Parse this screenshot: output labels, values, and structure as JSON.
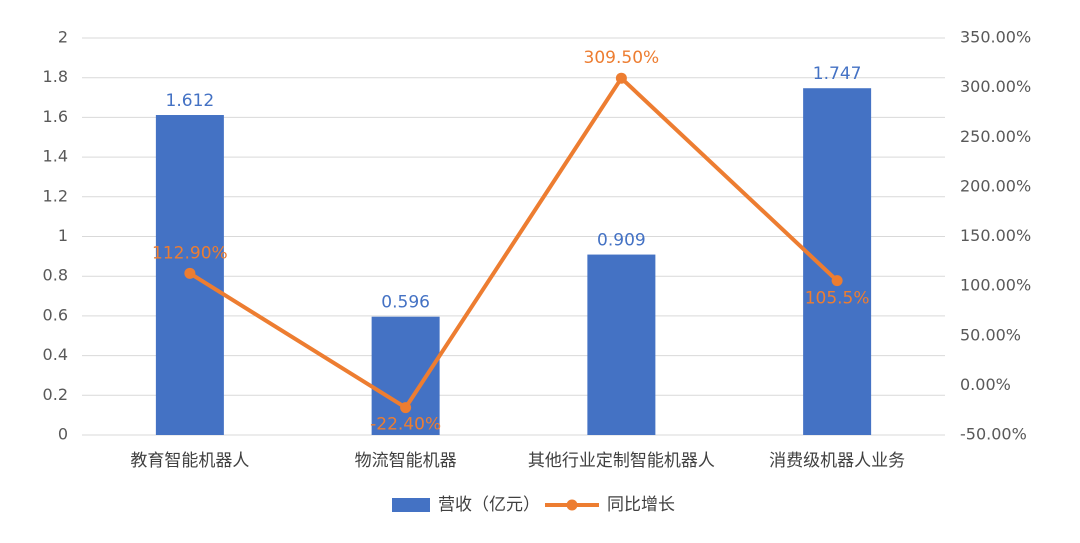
{
  "chart_data": {
    "type": "bar",
    "categories": [
      "教育智能机器人",
      "物流智能机器",
      "其他行业定制智能机器人",
      "消费级机器人业务"
    ],
    "series": [
      {
        "name": "营收（亿元）",
        "type": "bar",
        "color": "#4472c4",
        "values": [
          1.612,
          0.596,
          0.909,
          1.747
        ]
      },
      {
        "name": "同比增长",
        "type": "line",
        "axis": "y2",
        "color": "#ed7d31",
        "values": [
          112.9,
          -22.4,
          309.5,
          105.5
        ],
        "value_labels": [
          "112.90%",
          "-22.40%",
          "309.50%",
          "105.5%"
        ]
      }
    ],
    "ylim": [
      0,
      2
    ],
    "yticks": [
      0,
      0.2,
      0.4,
      0.6,
      0.8,
      1,
      1.2,
      1.4,
      1.6,
      1.8,
      2
    ],
    "y2lim": [
      -50,
      350
    ],
    "y2ticks": [
      {
        "value": -50,
        "label": "-50.00%"
      },
      {
        "value": 0,
        "label": "0.00%"
      },
      {
        "value": 50,
        "label": "50.00%"
      },
      {
        "value": 100,
        "label": "100.00%"
      },
      {
        "value": 150,
        "label": "150.00%"
      },
      {
        "value": 200,
        "label": "200.00%"
      },
      {
        "value": 250,
        "label": "250.00%"
      },
      {
        "value": 300,
        "label": "300.00%"
      },
      {
        "value": 350,
        "label": "350.00%"
      }
    ],
    "grid": true,
    "legend": "bottom"
  }
}
